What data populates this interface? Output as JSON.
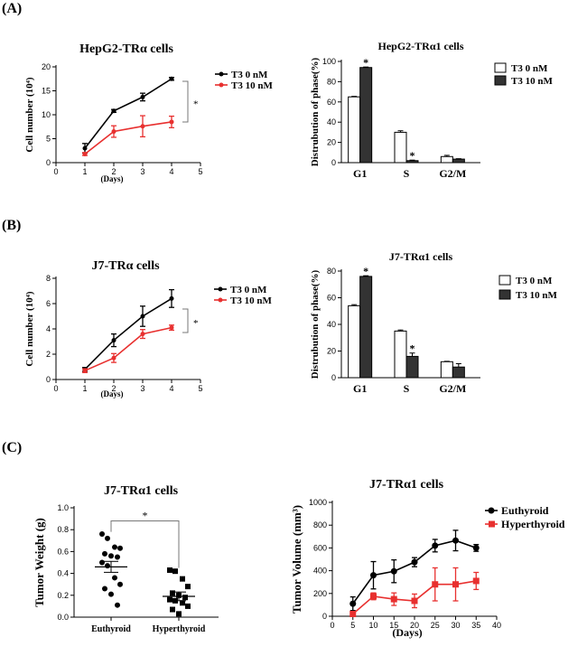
{
  "panel_labels": [
    "(A)",
    "(B)",
    "(C)"
  ],
  "chart_data": [
    {
      "id": "a1",
      "type": "line",
      "title": "HepG2-TRα cells",
      "xlabel": "(Days)",
      "ylabel": "Cell number (10⁴)",
      "xlim": [
        0,
        5
      ],
      "ylim": [
        0,
        20
      ],
      "xticks": [
        0,
        1,
        2,
        3,
        4,
        5
      ],
      "yticks": [
        0,
        5,
        10,
        15,
        20
      ],
      "series": [
        {
          "name": "T3  0 nM",
          "color": "#000000",
          "x": [
            1,
            2,
            3,
            4
          ],
          "y": [
            3.0,
            10.8,
            13.7,
            17.5
          ],
          "err": [
            1.0,
            0.3,
            0.8,
            0.3
          ]
        },
        {
          "name": "T3 10 nM",
          "color": "#e8302f",
          "x": [
            1,
            2,
            3,
            4
          ],
          "y": [
            1.8,
            6.5,
            7.6,
            8.5
          ],
          "err": [
            0.3,
            1.2,
            2.2,
            1.2
          ]
        }
      ],
      "annotation": "*"
    },
    {
      "id": "a2",
      "type": "bar",
      "title": "HepG2-TRα1 cells",
      "xlabel": "",
      "ylabel": "Distrubution of phase(%)",
      "categories": [
        "G1",
        "S",
        "G2/M"
      ],
      "ylim": [
        0,
        100
      ],
      "yticks": [
        0,
        20,
        40,
        60,
        80,
        100
      ],
      "series": [
        {
          "name": "T3 0 nM",
          "color": "#ffffff",
          "values": [
            65,
            30,
            6
          ],
          "err": [
            0.5,
            1.5,
            1.2
          ]
        },
        {
          "name": "T3 10 nM",
          "color": "#333333",
          "values": [
            94,
            2,
            3.5
          ],
          "err": [
            0.5,
            0.5,
            0.4
          ]
        }
      ],
      "annotations": [
        "*",
        "*"
      ]
    },
    {
      "id": "b1",
      "type": "line",
      "title": "J7-TRα cells",
      "xlabel": "(Days)",
      "ylabel": "Cell number (10⁴)",
      "xlim": [
        0,
        5
      ],
      "ylim": [
        0,
        8
      ],
      "xticks": [
        0,
        1,
        2,
        3,
        4,
        5
      ],
      "yticks": [
        0,
        2,
        4,
        6,
        8
      ],
      "series": [
        {
          "name": "T3  0 nM",
          "color": "#000000",
          "x": [
            1,
            2,
            3,
            4
          ],
          "y": [
            0.8,
            3.1,
            5.0,
            6.4
          ],
          "err": [
            0.15,
            0.5,
            0.8,
            0.7
          ]
        },
        {
          "name": "T3 10 nM",
          "color": "#e8302f",
          "x": [
            1,
            2,
            3,
            4
          ],
          "y": [
            0.7,
            1.7,
            3.6,
            4.1
          ],
          "err": [
            0.15,
            0.35,
            0.35,
            0.2
          ]
        }
      ],
      "annotation": "*"
    },
    {
      "id": "b2",
      "type": "bar",
      "title": "J7-TRα1 cells",
      "xlabel": "",
      "ylabel": "Distrubution of phase(%)",
      "categories": [
        "G1",
        "S",
        "G2/M"
      ],
      "ylim": [
        0,
        80
      ],
      "yticks": [
        0,
        20,
        40,
        60,
        80
      ],
      "series": [
        {
          "name": "T3 0 nM",
          "color": "#ffffff",
          "values": [
            54,
            35,
            12
          ],
          "err": [
            0.8,
            0.8,
            0.3
          ]
        },
        {
          "name": "T3 10 nM",
          "color": "#333333",
          "values": [
            76,
            16,
            8
          ],
          "err": [
            0.5,
            2.5,
            2.5
          ]
        }
      ],
      "annotations": [
        "*",
        "*"
      ]
    },
    {
      "id": "c1",
      "type": "scatter",
      "title": "J7-TRα1 cells",
      "xlabel": "",
      "ylabel": "Tumor Weight (g)",
      "categories": [
        "Euthyroid",
        "Hyperthyroid"
      ],
      "ylim": [
        0,
        1.0
      ],
      "yticks": [
        0.0,
        0.2,
        0.4,
        0.6,
        0.8,
        1.0
      ],
      "series": [
        {
          "name": "Euthyroid",
          "marker": "circle",
          "values": [
            0.76,
            0.72,
            0.64,
            0.63,
            0.58,
            0.56,
            0.55,
            0.5,
            0.47,
            0.36,
            0.3,
            0.26,
            0.21,
            0.11
          ],
          "mean": 0.46,
          "sem": 0.05
        },
        {
          "name": "Hyperthyroid",
          "marker": "square",
          "values": [
            0.43,
            0.42,
            0.35,
            0.28,
            0.22,
            0.2,
            0.18,
            0.16,
            0.15,
            0.13,
            0.1,
            0.07,
            0.03
          ],
          "mean": 0.19,
          "sem": 0.04
        }
      ],
      "annotation": "*"
    },
    {
      "id": "c2",
      "type": "line",
      "title": "J7-TRα1 cells",
      "xlabel": "(Days)",
      "ylabel": "Tumor Volume (mm³)",
      "xlim": [
        0,
        40
      ],
      "ylim": [
        0,
        1000
      ],
      "xticks": [
        0,
        5,
        10,
        15,
        20,
        25,
        30,
        35,
        40
      ],
      "yticks": [
        0,
        200,
        400,
        600,
        800,
        1000
      ],
      "series": [
        {
          "name": "Euthyroid",
          "color": "#000000",
          "marker": "circle",
          "x": [
            5,
            10,
            15,
            20,
            25,
            30,
            35
          ],
          "y": [
            110,
            360,
            395,
            475,
            620,
            665,
            600
          ],
          "err": [
            60,
            120,
            100,
            40,
            55,
            90,
            30
          ]
        },
        {
          "name": "Hyperthyroid",
          "color": "#e8302f",
          "marker": "square",
          "x": [
            5,
            10,
            15,
            20,
            25,
            30,
            35
          ],
          "y": [
            20,
            175,
            150,
            135,
            280,
            280,
            310
          ],
          "err": [
            20,
            30,
            55,
            60,
            145,
            145,
            75
          ]
        }
      ]
    }
  ]
}
